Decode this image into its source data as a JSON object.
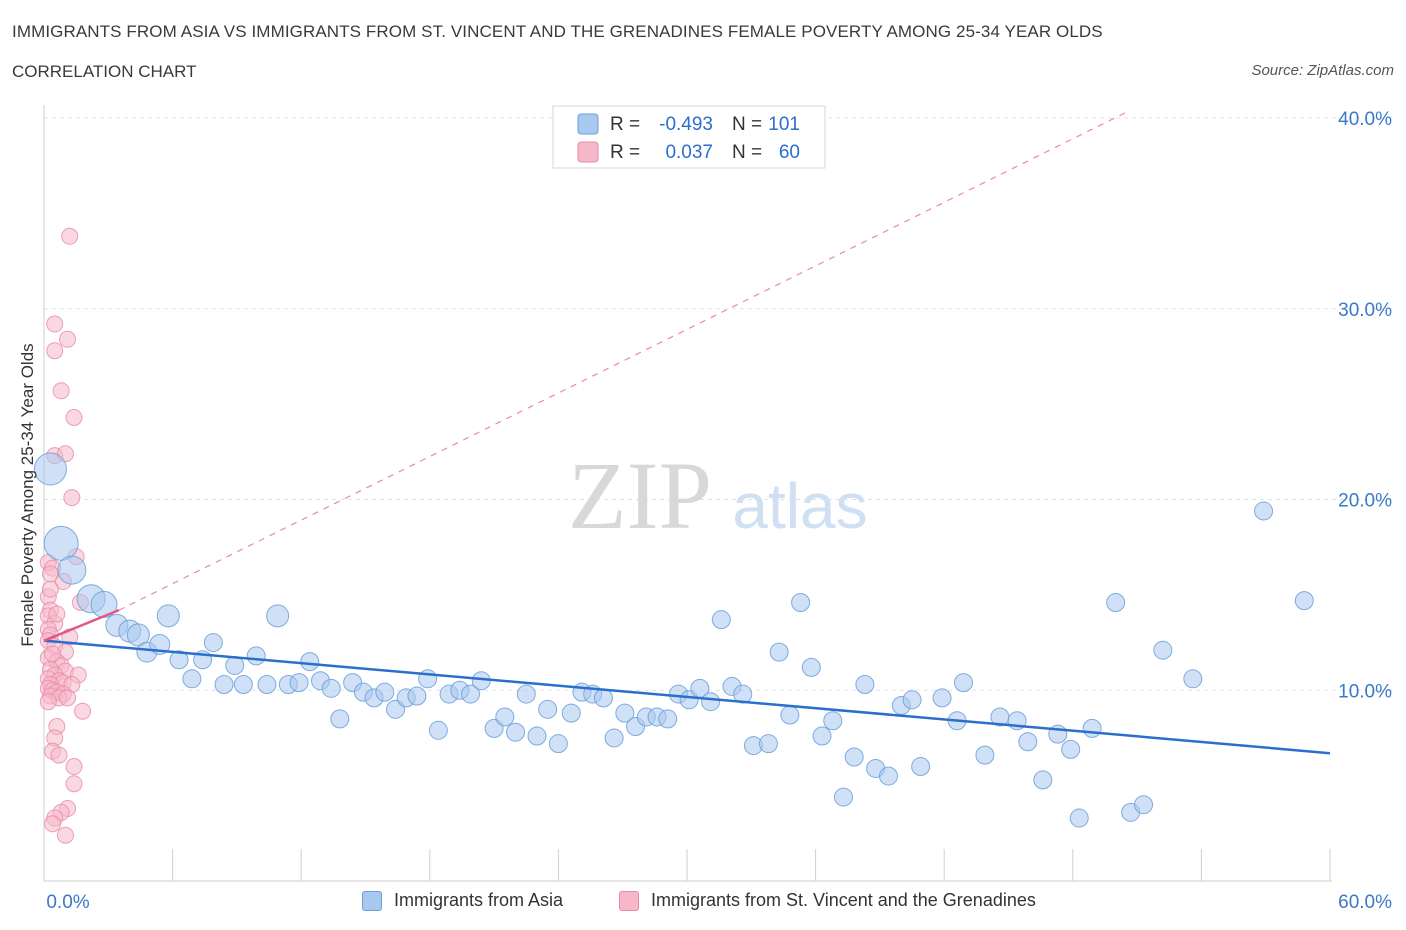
{
  "header": {
    "title": "IMMIGRANTS FROM ASIA VS IMMIGRANTS FROM ST. VINCENT AND THE GRENADINES FEMALE POVERTY AMONG 25-34 YEAR OLDS",
    "subtitle": "CORRELATION CHART",
    "source": "Source: ZipAtlas.com"
  },
  "colors": {
    "blue_fill": "#a9c8f0",
    "blue_stroke": "#6a9fd8",
    "blue_line": "#2a6fcc",
    "pink_fill": "#f6b8ca",
    "pink_stroke": "#e88aa6",
    "pink_line": "#e0588a",
    "tick_label": "#3a78c9",
    "grid": "#dde3ea"
  },
  "chart_data": {
    "type": "scatter",
    "title": "IMMIGRANTS FROM ASIA VS IMMIGRANTS FROM ST. VINCENT AND THE GRENADINES FEMALE POVERTY AMONG 25-34 YEAR OLDS",
    "xlabel": "",
    "ylabel": "Female Poverty Among 25-34 Year Olds",
    "xlim": [
      0,
      60
    ],
    "ylim": [
      0,
      40
    ],
    "x_tick_labels": [
      "0.0%",
      "60.0%"
    ],
    "y_ticks": [
      10,
      20,
      30,
      40
    ],
    "y_tick_labels": [
      "10.0%",
      "20.0%",
      "30.0%",
      "40.0%"
    ],
    "watermark": {
      "zip": "ZIP",
      "atlas": "atlas"
    },
    "stats": [
      {
        "r_label": "R = ",
        "r_value": "-0.493",
        "n_label": "N = ",
        "n_value": "101"
      },
      {
        "r_label": "R = ",
        "r_value": "0.037",
        "n_label": "N = ",
        "n_value": "60"
      }
    ],
    "series": [
      {
        "name": "Immigrants from Asia",
        "color": "#a9c8f0",
        "trend": {
          "x": [
            0,
            60
          ],
          "y": [
            12.6,
            6.7
          ]
        },
        "points": [
          {
            "x": 0.3,
            "y": 21.6,
            "s": 16
          },
          {
            "x": 0.8,
            "y": 17.7,
            "s": 17
          },
          {
            "x": 1.3,
            "y": 16.3,
            "s": 14
          },
          {
            "x": 2.2,
            "y": 14.8,
            "s": 14
          },
          {
            "x": 2.8,
            "y": 14.5,
            "s": 13
          },
          {
            "x": 3.4,
            "y": 13.4,
            "s": 11
          },
          {
            "x": 4.0,
            "y": 13.1,
            "s": 11
          },
          {
            "x": 4.4,
            "y": 12.9,
            "s": 11
          },
          {
            "x": 4.8,
            "y": 12.0,
            "s": 10
          },
          {
            "x": 5.4,
            "y": 12.4,
            "s": 10
          },
          {
            "x": 5.8,
            "y": 13.9,
            "s": 11
          },
          {
            "x": 6.3,
            "y": 11.6,
            "s": 9
          },
          {
            "x": 6.9,
            "y": 10.6,
            "s": 9
          },
          {
            "x": 7.4,
            "y": 11.6,
            "s": 9
          },
          {
            "x": 7.9,
            "y": 12.5,
            "s": 9
          },
          {
            "x": 8.4,
            "y": 10.3,
            "s": 9
          },
          {
            "x": 8.9,
            "y": 11.3,
            "s": 9
          },
          {
            "x": 9.3,
            "y": 10.3,
            "s": 9
          },
          {
            "x": 9.9,
            "y": 11.8,
            "s": 9
          },
          {
            "x": 10.4,
            "y": 10.3,
            "s": 9
          },
          {
            "x": 10.9,
            "y": 13.9,
            "s": 11
          },
          {
            "x": 11.4,
            "y": 10.3,
            "s": 9
          },
          {
            "x": 11.9,
            "y": 10.4,
            "s": 9
          },
          {
            "x": 12.4,
            "y": 11.5,
            "s": 9
          },
          {
            "x": 12.9,
            "y": 10.5,
            "s": 9
          },
          {
            "x": 13.4,
            "y": 10.1,
            "s": 9
          },
          {
            "x": 13.8,
            "y": 8.5,
            "s": 9
          },
          {
            "x": 14.4,
            "y": 10.4,
            "s": 9
          },
          {
            "x": 14.9,
            "y": 9.9,
            "s": 9
          },
          {
            "x": 15.4,
            "y": 9.6,
            "s": 9
          },
          {
            "x": 15.9,
            "y": 9.9,
            "s": 9
          },
          {
            "x": 16.4,
            "y": 9.0,
            "s": 9
          },
          {
            "x": 16.9,
            "y": 9.6,
            "s": 9
          },
          {
            "x": 17.4,
            "y": 9.7,
            "s": 9
          },
          {
            "x": 17.9,
            "y": 10.6,
            "s": 9
          },
          {
            "x": 18.4,
            "y": 7.9,
            "s": 9
          },
          {
            "x": 18.9,
            "y": 9.8,
            "s": 9
          },
          {
            "x": 19.4,
            "y": 10.0,
            "s": 9
          },
          {
            "x": 19.9,
            "y": 9.8,
            "s": 9
          },
          {
            "x": 20.4,
            "y": 10.5,
            "s": 9
          },
          {
            "x": 21.0,
            "y": 8.0,
            "s": 9
          },
          {
            "x": 21.5,
            "y": 8.6,
            "s": 9
          },
          {
            "x": 22.0,
            "y": 7.8,
            "s": 9
          },
          {
            "x": 22.5,
            "y": 9.8,
            "s": 9
          },
          {
            "x": 23.0,
            "y": 7.6,
            "s": 9
          },
          {
            "x": 23.5,
            "y": 9.0,
            "s": 9
          },
          {
            "x": 24.0,
            "y": 7.2,
            "s": 9
          },
          {
            "x": 24.6,
            "y": 8.8,
            "s": 9
          },
          {
            "x": 25.1,
            "y": 9.9,
            "s": 9
          },
          {
            "x": 25.6,
            "y": 9.8,
            "s": 9
          },
          {
            "x": 26.1,
            "y": 9.6,
            "s": 9
          },
          {
            "x": 26.6,
            "y": 7.5,
            "s": 9
          },
          {
            "x": 27.1,
            "y": 8.8,
            "s": 9
          },
          {
            "x": 27.6,
            "y": 8.1,
            "s": 9
          },
          {
            "x": 28.1,
            "y": 8.6,
            "s": 9
          },
          {
            "x": 28.6,
            "y": 8.6,
            "s": 9
          },
          {
            "x": 29.1,
            "y": 8.5,
            "s": 9
          },
          {
            "x": 29.6,
            "y": 9.8,
            "s": 9
          },
          {
            "x": 30.1,
            "y": 9.5,
            "s": 9
          },
          {
            "x": 30.6,
            "y": 10.1,
            "s": 9
          },
          {
            "x": 31.1,
            "y": 9.4,
            "s": 9
          },
          {
            "x": 31.6,
            "y": 13.7,
            "s": 9
          },
          {
            "x": 32.1,
            "y": 10.2,
            "s": 9
          },
          {
            "x": 32.6,
            "y": 9.8,
            "s": 9
          },
          {
            "x": 33.1,
            "y": 7.1,
            "s": 9
          },
          {
            "x": 33.8,
            "y": 7.2,
            "s": 9
          },
          {
            "x": 34.3,
            "y": 12.0,
            "s": 9
          },
          {
            "x": 34.8,
            "y": 8.7,
            "s": 9
          },
          {
            "x": 35.3,
            "y": 14.6,
            "s": 9
          },
          {
            "x": 35.8,
            "y": 11.2,
            "s": 9
          },
          {
            "x": 36.3,
            "y": 7.6,
            "s": 9
          },
          {
            "x": 36.8,
            "y": 8.4,
            "s": 9
          },
          {
            "x": 37.3,
            "y": 4.4,
            "s": 9
          },
          {
            "x": 37.8,
            "y": 6.5,
            "s": 9
          },
          {
            "x": 38.3,
            "y": 10.3,
            "s": 9
          },
          {
            "x": 38.8,
            "y": 5.9,
            "s": 9
          },
          {
            "x": 39.4,
            "y": 5.5,
            "s": 9
          },
          {
            "x": 40.0,
            "y": 9.2,
            "s": 9
          },
          {
            "x": 40.5,
            "y": 9.5,
            "s": 9
          },
          {
            "x": 40.9,
            "y": 6.0,
            "s": 9
          },
          {
            "x": 41.9,
            "y": 9.6,
            "s": 9
          },
          {
            "x": 42.6,
            "y": 8.4,
            "s": 9
          },
          {
            "x": 42.9,
            "y": 10.4,
            "s": 9
          },
          {
            "x": 43.9,
            "y": 6.6,
            "s": 9
          },
          {
            "x": 44.6,
            "y": 8.6,
            "s": 9
          },
          {
            "x": 45.4,
            "y": 8.4,
            "s": 9
          },
          {
            "x": 45.9,
            "y": 7.3,
            "s": 9
          },
          {
            "x": 46.6,
            "y": 5.3,
            "s": 9
          },
          {
            "x": 47.3,
            "y": 7.7,
            "s": 9
          },
          {
            "x": 47.9,
            "y": 6.9,
            "s": 9
          },
          {
            "x": 48.3,
            "y": 3.3,
            "s": 9
          },
          {
            "x": 48.9,
            "y": 8.0,
            "s": 9
          },
          {
            "x": 50.0,
            "y": 14.6,
            "s": 9
          },
          {
            "x": 50.7,
            "y": 3.6,
            "s": 9
          },
          {
            "x": 51.3,
            "y": 4.0,
            "s": 9
          },
          {
            "x": 52.2,
            "y": 12.1,
            "s": 9
          },
          {
            "x": 53.6,
            "y": 10.6,
            "s": 9
          },
          {
            "x": 56.9,
            "y": 19.4,
            "s": 9
          },
          {
            "x": 58.8,
            "y": 14.7,
            "s": 9
          }
        ]
      },
      {
        "name": "Immigrants from St. Vincent and the Grenadines",
        "color": "#f6b8ca",
        "trend": {
          "x": [
            0,
            3.5
          ],
          "y": [
            12.6,
            14.2
          ]
        },
        "trend_extension": {
          "x": [
            3.5,
            50.5
          ],
          "y": [
            14.2,
            40.3
          ]
        },
        "points": [
          {
            "x": 1.2,
            "y": 33.8
          },
          {
            "x": 0.5,
            "y": 29.2
          },
          {
            "x": 1.1,
            "y": 28.4
          },
          {
            "x": 0.5,
            "y": 27.8
          },
          {
            "x": 0.8,
            "y": 25.7
          },
          {
            "x": 1.4,
            "y": 24.3
          },
          {
            "x": 0.5,
            "y": 22.3
          },
          {
            "x": 1.0,
            "y": 22.4
          },
          {
            "x": 1.3,
            "y": 20.1
          },
          {
            "x": 1.5,
            "y": 17.0
          },
          {
            "x": 0.2,
            "y": 16.7
          },
          {
            "x": 0.4,
            "y": 16.4
          },
          {
            "x": 0.3,
            "y": 16.1
          },
          {
            "x": 0.9,
            "y": 15.7
          },
          {
            "x": 0.2,
            "y": 14.9
          },
          {
            "x": 1.7,
            "y": 14.6
          },
          {
            "x": 0.3,
            "y": 14.2
          },
          {
            "x": 0.2,
            "y": 13.9
          },
          {
            "x": 0.5,
            "y": 13.5
          },
          {
            "x": 0.2,
            "y": 13.2
          },
          {
            "x": 0.3,
            "y": 12.9
          },
          {
            "x": 0.2,
            "y": 12.6
          },
          {
            "x": 0.5,
            "y": 12.3
          },
          {
            "x": 1.0,
            "y": 12.0
          },
          {
            "x": 0.2,
            "y": 11.7
          },
          {
            "x": 0.6,
            "y": 11.5
          },
          {
            "x": 0.8,
            "y": 11.3
          },
          {
            "x": 0.3,
            "y": 11.1
          },
          {
            "x": 1.0,
            "y": 11.0
          },
          {
            "x": 0.5,
            "y": 10.8
          },
          {
            "x": 1.6,
            "y": 10.8
          },
          {
            "x": 0.2,
            "y": 10.6
          },
          {
            "x": 0.7,
            "y": 10.5
          },
          {
            "x": 0.9,
            "y": 10.4
          },
          {
            "x": 0.3,
            "y": 10.3
          },
          {
            "x": 1.3,
            "y": 10.3
          },
          {
            "x": 0.2,
            "y": 10.1
          },
          {
            "x": 0.4,
            "y": 10.0
          },
          {
            "x": 0.6,
            "y": 9.9
          },
          {
            "x": 0.9,
            "y": 9.8
          },
          {
            "x": 0.3,
            "y": 9.7
          },
          {
            "x": 0.7,
            "y": 9.6
          },
          {
            "x": 0.2,
            "y": 9.4
          },
          {
            "x": 1.8,
            "y": 8.9
          },
          {
            "x": 0.6,
            "y": 8.1
          },
          {
            "x": 0.5,
            "y": 7.5
          },
          {
            "x": 0.4,
            "y": 6.8
          },
          {
            "x": 0.7,
            "y": 6.6
          },
          {
            "x": 1.4,
            "y": 6.0
          },
          {
            "x": 1.4,
            "y": 5.1
          },
          {
            "x": 1.1,
            "y": 3.8
          },
          {
            "x": 0.8,
            "y": 3.6
          },
          {
            "x": 0.5,
            "y": 3.3
          },
          {
            "x": 0.4,
            "y": 3.0
          },
          {
            "x": 1.0,
            "y": 2.4
          },
          {
            "x": 0.3,
            "y": 15.3
          },
          {
            "x": 0.6,
            "y": 14.0
          },
          {
            "x": 1.2,
            "y": 12.8
          },
          {
            "x": 0.4,
            "y": 11.9
          },
          {
            "x": 1.1,
            "y": 9.6
          }
        ]
      }
    ]
  }
}
